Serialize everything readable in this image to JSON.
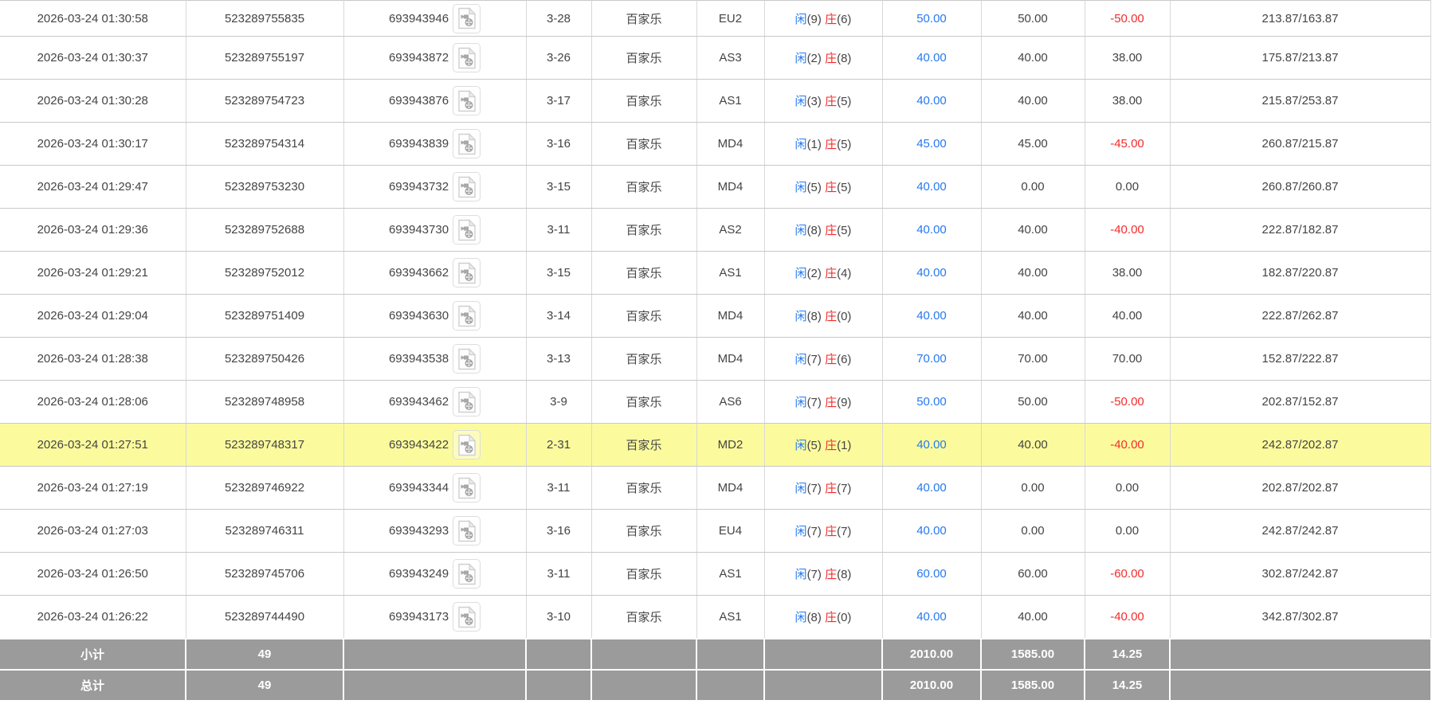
{
  "colors": {
    "accent_blue": "#2579f2",
    "loss_red": "#f32b2b",
    "highlight_yellow": "#fbfb9e",
    "summary_gray": "#9b9b9b",
    "grid_line": "#c8c8c8"
  },
  "icons": {
    "video_record_icon": "video-file"
  },
  "table": {
    "rows": [
      {
        "time": "2026-03-24 01:30:58",
        "bet_id": "523289755835",
        "game_id": "693943946",
        "round": "3-28",
        "game": "百家乐",
        "table": "EU2",
        "player_label": "闲",
        "player_value": "(9)",
        "banker_label": "庄",
        "banker_value": "(6)",
        "bet": "50.00",
        "valid": "50.00",
        "winloss": "-50.00",
        "balance": "213.87/163.87",
        "highlight": false
      },
      {
        "time": "2026-03-24 01:30:37",
        "bet_id": "523289755197",
        "game_id": "693943872",
        "round": "3-26",
        "game": "百家乐",
        "table": "AS3",
        "player_label": "闲",
        "player_value": "(2)",
        "banker_label": "庄",
        "banker_value": "(8)",
        "bet": "40.00",
        "valid": "40.00",
        "winloss": "38.00",
        "balance": "175.87/213.87",
        "highlight": false
      },
      {
        "time": "2026-03-24 01:30:28",
        "bet_id": "523289754723",
        "game_id": "693943876",
        "round": "3-17",
        "game": "百家乐",
        "table": "AS1",
        "player_label": "闲",
        "player_value": "(3)",
        "banker_label": "庄",
        "banker_value": "(5)",
        "bet": "40.00",
        "valid": "40.00",
        "winloss": "38.00",
        "balance": "215.87/253.87",
        "highlight": false
      },
      {
        "time": "2026-03-24 01:30:17",
        "bet_id": "523289754314",
        "game_id": "693943839",
        "round": "3-16",
        "game": "百家乐",
        "table": "MD4",
        "player_label": "闲",
        "player_value": "(1)",
        "banker_label": "庄",
        "banker_value": "(5)",
        "bet": "45.00",
        "valid": "45.00",
        "winloss": "-45.00",
        "balance": "260.87/215.87",
        "highlight": false
      },
      {
        "time": "2026-03-24 01:29:47",
        "bet_id": "523289753230",
        "game_id": "693943732",
        "round": "3-15",
        "game": "百家乐",
        "table": "MD4",
        "player_label": "闲",
        "player_value": "(5)",
        "banker_label": "庄",
        "banker_value": "(5)",
        "bet": "40.00",
        "valid": "0.00",
        "winloss": "0.00",
        "balance": "260.87/260.87",
        "highlight": false
      },
      {
        "time": "2026-03-24 01:29:36",
        "bet_id": "523289752688",
        "game_id": "693943730",
        "round": "3-11",
        "game": "百家乐",
        "table": "AS2",
        "player_label": "闲",
        "player_value": "(8)",
        "banker_label": "庄",
        "banker_value": "(5)",
        "bet": "40.00",
        "valid": "40.00",
        "winloss": "-40.00",
        "balance": "222.87/182.87",
        "highlight": false
      },
      {
        "time": "2026-03-24 01:29:21",
        "bet_id": "523289752012",
        "game_id": "693943662",
        "round": "3-15",
        "game": "百家乐",
        "table": "AS1",
        "player_label": "闲",
        "player_value": "(2)",
        "banker_label": "庄",
        "banker_value": "(4)",
        "bet": "40.00",
        "valid": "40.00",
        "winloss": "38.00",
        "balance": "182.87/220.87",
        "highlight": false
      },
      {
        "time": "2026-03-24 01:29:04",
        "bet_id": "523289751409",
        "game_id": "693943630",
        "round": "3-14",
        "game": "百家乐",
        "table": "MD4",
        "player_label": "闲",
        "player_value": "(8)",
        "banker_label": "庄",
        "banker_value": "(0)",
        "bet": "40.00",
        "valid": "40.00",
        "winloss": "40.00",
        "balance": "222.87/262.87",
        "highlight": false
      },
      {
        "time": "2026-03-24 01:28:38",
        "bet_id": "523289750426",
        "game_id": "693943538",
        "round": "3-13",
        "game": "百家乐",
        "table": "MD4",
        "player_label": "闲",
        "player_value": "(7)",
        "banker_label": "庄",
        "banker_value": "(6)",
        "bet": "70.00",
        "valid": "70.00",
        "winloss": "70.00",
        "balance": "152.87/222.87",
        "highlight": false
      },
      {
        "time": "2026-03-24 01:28:06",
        "bet_id": "523289748958",
        "game_id": "693943462",
        "round": "3-9",
        "game": "百家乐",
        "table": "AS6",
        "player_label": "闲",
        "player_value": "(7)",
        "banker_label": "庄",
        "banker_value": "(9)",
        "bet": "50.00",
        "valid": "50.00",
        "winloss": "-50.00",
        "balance": "202.87/152.87",
        "highlight": false
      },
      {
        "time": "2026-03-24 01:27:51",
        "bet_id": "523289748317",
        "game_id": "693943422",
        "round": "2-31",
        "game": "百家乐",
        "table": "MD2",
        "player_label": "闲",
        "player_value": "(5)",
        "banker_label": "庄",
        "banker_value": "(1)",
        "bet": "40.00",
        "valid": "40.00",
        "winloss": "-40.00",
        "balance": "242.87/202.87",
        "highlight": true
      },
      {
        "time": "2026-03-24 01:27:19",
        "bet_id": "523289746922",
        "game_id": "693943344",
        "round": "3-11",
        "game": "百家乐",
        "table": "MD4",
        "player_label": "闲",
        "player_value": "(7)",
        "banker_label": "庄",
        "banker_value": "(7)",
        "bet": "40.00",
        "valid": "0.00",
        "winloss": "0.00",
        "balance": "202.87/202.87",
        "highlight": false
      },
      {
        "time": "2026-03-24 01:27:03",
        "bet_id": "523289746311",
        "game_id": "693943293",
        "round": "3-16",
        "game": "百家乐",
        "table": "EU4",
        "player_label": "闲",
        "player_value": "(7)",
        "banker_label": "庄",
        "banker_value": "(7)",
        "bet": "40.00",
        "valid": "0.00",
        "winloss": "0.00",
        "balance": "242.87/242.87",
        "highlight": false
      },
      {
        "time": "2026-03-24 01:26:50",
        "bet_id": "523289745706",
        "game_id": "693943249",
        "round": "3-11",
        "game": "百家乐",
        "table": "AS1",
        "player_label": "闲",
        "player_value": "(7)",
        "banker_label": "庄",
        "banker_value": "(8)",
        "bet": "60.00",
        "valid": "60.00",
        "winloss": "-60.00",
        "balance": "302.87/242.87",
        "highlight": false
      },
      {
        "time": "2026-03-24 01:26:22",
        "bet_id": "523289744490",
        "game_id": "693943173",
        "round": "3-10",
        "game": "百家乐",
        "table": "AS1",
        "player_label": "闲",
        "player_value": "(8)",
        "banker_label": "庄",
        "banker_value": "(0)",
        "bet": "40.00",
        "valid": "40.00",
        "winloss": "-40.00",
        "balance": "342.87/302.87",
        "highlight": false
      }
    ],
    "summary_rows": [
      {
        "label": "小计",
        "count": "49",
        "bet_total": "2010.00",
        "valid_total": "1585.00",
        "winloss_total": "14.25"
      },
      {
        "label": "总计",
        "count": "49",
        "bet_total": "2010.00",
        "valid_total": "1585.00",
        "winloss_total": "14.25"
      }
    ]
  }
}
